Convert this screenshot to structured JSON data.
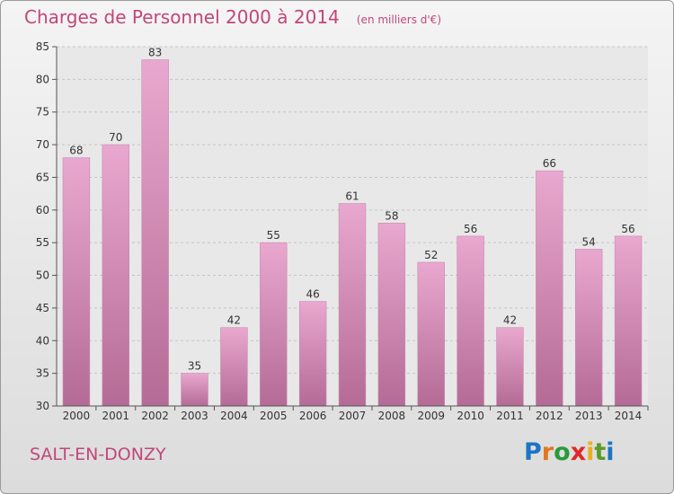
{
  "header": {
    "title": "Charges de Personnel 2000 à 2014",
    "subtitle": "(en milliers d'€)"
  },
  "commune": "SALT-EN-DONZY",
  "logo": {
    "text": "Proxiti",
    "letter_colors": [
      "#1e74c4",
      "#e07820",
      "#2a9a3a",
      "#e0282a",
      "#e8b020",
      "#5b9a2a",
      "#1e74c4"
    ]
  },
  "colors": {
    "bar_light": "#e9a8cf",
    "bar_dark": "#b46b95",
    "accent": "#c0477a"
  },
  "chart_data": {
    "type": "bar",
    "categories": [
      "2000",
      "2001",
      "2002",
      "2003",
      "2004",
      "2005",
      "2006",
      "2007",
      "2008",
      "2009",
      "2010",
      "2011",
      "2012",
      "2013",
      "2014"
    ],
    "values": [
      68,
      70,
      83,
      35,
      42,
      55,
      46,
      61,
      58,
      52,
      56,
      42,
      66,
      54,
      56
    ],
    "ylim": [
      30,
      85
    ],
    "yticks": [
      30,
      35,
      40,
      45,
      50,
      55,
      60,
      65,
      70,
      75,
      80,
      85
    ],
    "grid": "horizontal-dashed",
    "xlabel": "",
    "ylabel": ""
  }
}
